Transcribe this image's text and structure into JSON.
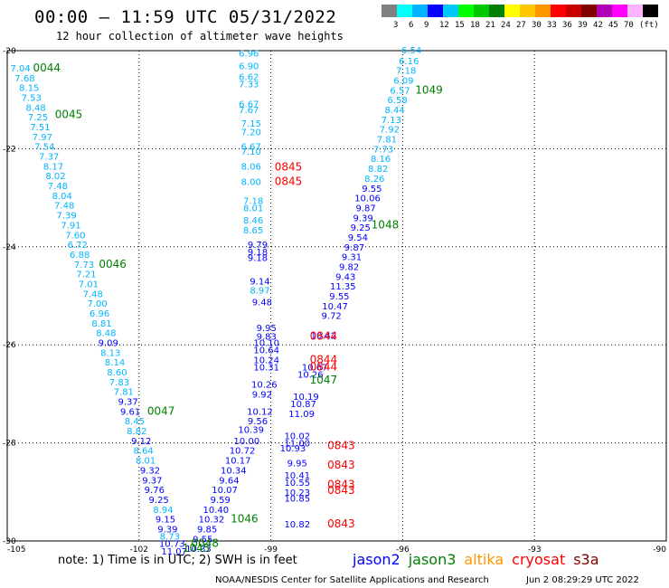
{
  "header": {
    "title": "00:00 — 11:59 UTC 05/31/2022",
    "subtitle": "12 hour collection of altimeter wave heights"
  },
  "colorbar": {
    "unit": "(ft)",
    "colors": [
      "#808080",
      "#00ffff",
      "#00b4ff",
      "#0000ff",
      "#00c8ff",
      "#00ff00",
      "#00c800",
      "#008000",
      "#ffff00",
      "#ffc800",
      "#ff9600",
      "#ff0000",
      "#c80000",
      "#800000",
      "#b400b4",
      "#ff00ff",
      "#ffb4ff",
      "#000000"
    ],
    "labels": [
      "3",
      "6",
      "9",
      "12",
      "15",
      "18",
      "21",
      "24",
      "27",
      "30",
      "33",
      "36",
      "39",
      "42",
      "45",
      "70"
    ]
  },
  "map": {
    "lon_range": [
      -105,
      -90
    ],
    "lat_range": [
      -30,
      -20
    ],
    "lon_ticks": [
      "-105",
      "-102",
      "-99",
      "-96",
      "-93",
      "-90"
    ],
    "lat_ticks": [
      "-20",
      "-22",
      "-24",
      "-26",
      "-28",
      "-30"
    ]
  },
  "observations": [
    {
      "t": "6.54",
      "c": "#00b4ff",
      "lon": -95.8,
      "lat": -19.98
    },
    {
      "t": "6.16",
      "c": "#00b4ff",
      "lon": -95.86,
      "lat": -20.2
    },
    {
      "t": "7.18",
      "c": "#00b4ff",
      "lon": -95.92,
      "lat": -20.4
    },
    {
      "t": "6.09",
      "c": "#00b4ff",
      "lon": -95.98,
      "lat": -20.6
    },
    {
      "t": "6.57",
      "c": "#00b4ff",
      "lon": -96.06,
      "lat": -20.8
    },
    {
      "t": "6.58",
      "c": "#00b4ff",
      "lon": -96.12,
      "lat": -21.0
    },
    {
      "t": "8.44",
      "c": "#00b4ff",
      "lon": -96.18,
      "lat": -21.2
    },
    {
      "t": "7.13",
      "c": "#00b4ff",
      "lon": -96.26,
      "lat": -21.4
    },
    {
      "t": "7.92",
      "c": "#00b4ff",
      "lon": -96.3,
      "lat": -21.6
    },
    {
      "t": "7.81",
      "c": "#00b4ff",
      "lon": -96.36,
      "lat": -21.8
    },
    {
      "t": "7.73",
      "c": "#00b4ff",
      "lon": -96.44,
      "lat": -22.0
    },
    {
      "t": "8.16",
      "c": "#00b4ff",
      "lon": -96.5,
      "lat": -22.2
    },
    {
      "t": "8.82",
      "c": "#00b4ff",
      "lon": -96.56,
      "lat": -22.4
    },
    {
      "t": "8.26",
      "c": "#00b4ff",
      "lon": -96.64,
      "lat": -22.6
    },
    {
      "t": "9.55",
      "c": "#0000ff",
      "lon": -96.7,
      "lat": -22.8
    },
    {
      "t": "10.06",
      "c": "#0000ff",
      "lon": -96.8,
      "lat": -23.0
    },
    {
      "t": "9.87",
      "c": "#0000ff",
      "lon": -96.84,
      "lat": -23.2
    },
    {
      "t": "9.39",
      "c": "#0000ff",
      "lon": -96.9,
      "lat": -23.4
    },
    {
      "t": "9.25",
      "c": "#0000ff",
      "lon": -96.96,
      "lat": -23.6
    },
    {
      "t": "9.54",
      "c": "#0000ff",
      "lon": -97.02,
      "lat": -23.8
    },
    {
      "t": "9.87",
      "c": "#0000ff",
      "lon": -97.1,
      "lat": -24.0
    },
    {
      "t": "9.31",
      "c": "#0000ff",
      "lon": -97.16,
      "lat": -24.2
    },
    {
      "t": "9.82",
      "c": "#0000ff",
      "lon": -97.22,
      "lat": -24.4
    },
    {
      "t": "9.43",
      "c": "#0000ff",
      "lon": -97.3,
      "lat": -24.6
    },
    {
      "t": "11.35",
      "c": "#0000ff",
      "lon": -97.36,
      "lat": -24.8
    },
    {
      "t": "9.55",
      "c": "#0000ff",
      "lon": -97.44,
      "lat": -25.0
    },
    {
      "t": "10.47",
      "c": "#0000ff",
      "lon": -97.54,
      "lat": -25.2
    },
    {
      "t": "9.72",
      "c": "#0000ff",
      "lon": -97.62,
      "lat": -25.4
    },
    {
      "t": "10.42",
      "c": "#0000ff",
      "lon": -97.8,
      "lat": -25.8
    },
    {
      "t": "10.67",
      "c": "#0000ff",
      "lon": -98.0,
      "lat": -26.45
    },
    {
      "t": "10.26",
      "c": "#0000ff",
      "lon": -98.1,
      "lat": -26.6
    },
    {
      "t": "10.19",
      "c": "#0000ff",
      "lon": -98.2,
      "lat": -27.05
    },
    {
      "t": "10.87",
      "c": "#0000ff",
      "lon": -98.26,
      "lat": -27.2
    },
    {
      "t": "11.09",
      "c": "#0000ff",
      "lon": -98.3,
      "lat": -27.4
    },
    {
      "t": "10.02",
      "c": "#0000ff",
      "lon": -98.4,
      "lat": -27.85
    },
    {
      "t": "11.00",
      "c": "#0000ff",
      "lon": -98.4,
      "lat": -28.0
    },
    {
      "t": "10.93",
      "c": "#0000ff",
      "lon": -98.5,
      "lat": -28.1
    },
    {
      "t": "9.95",
      "c": "#0000ff",
      "lon": -98.4,
      "lat": -28.4
    },
    {
      "t": "10.41",
      "c": "#0000ff",
      "lon": -98.4,
      "lat": -28.65
    },
    {
      "t": "10.55",
      "c": "#0000ff",
      "lon": -98.4,
      "lat": -28.8
    },
    {
      "t": "10.23",
      "c": "#0000ff",
      "lon": -98.4,
      "lat": -29.0
    },
    {
      "t": "10.85",
      "c": "#0000ff",
      "lon": -98.4,
      "lat": -29.12
    },
    {
      "t": "10.82",
      "c": "#0000ff",
      "lon": -98.4,
      "lat": -29.65
    },
    {
      "t": "6.96",
      "c": "#00b4ff",
      "lon": -99.5,
      "lat": -20.05
    },
    {
      "t": "6.90",
      "c": "#00b4ff",
      "lon": -99.5,
      "lat": -20.3
    },
    {
      "t": "6.62",
      "c": "#00b4ff",
      "lon": -99.5,
      "lat": -20.53
    },
    {
      "t": "7.33",
      "c": "#00b4ff",
      "lon": -99.5,
      "lat": -20.67
    },
    {
      "t": "6.67",
      "c": "#00b4ff",
      "lon": -99.5,
      "lat": -21.08
    },
    {
      "t": "7.67",
      "c": "#00b4ff",
      "lon": -99.5,
      "lat": -21.2
    },
    {
      "t": "7.15",
      "c": "#00b4ff",
      "lon": -99.45,
      "lat": -21.48
    },
    {
      "t": "7.20",
      "c": "#00b4ff",
      "lon": -99.45,
      "lat": -21.65
    },
    {
      "t": "6.67",
      "c": "#00b4ff",
      "lon": -99.45,
      "lat": -21.95
    },
    {
      "t": "7.10",
      "c": "#00b4ff",
      "lon": -99.45,
      "lat": -22.05
    },
    {
      "t": "8.06",
      "c": "#00b4ff",
      "lon": -99.45,
      "lat": -22.35
    },
    {
      "t": "8.00",
      "c": "#00b4ff",
      "lon": -99.45,
      "lat": -22.67
    },
    {
      "t": "7.18",
      "c": "#00b4ff",
      "lon": -99.4,
      "lat": -23.05
    },
    {
      "t": "8.01",
      "c": "#00b4ff",
      "lon": -99.4,
      "lat": -23.2
    },
    {
      "t": "8.46",
      "c": "#00b4ff",
      "lon": -99.4,
      "lat": -23.45
    },
    {
      "t": "8.65",
      "c": "#00b4ff",
      "lon": -99.4,
      "lat": -23.65
    },
    {
      "t": "9.79",
      "c": "#0000ff",
      "lon": -99.3,
      "lat": -23.95
    },
    {
      "t": "9.18",
      "c": "#0000ff",
      "lon": -99.3,
      "lat": -24.1
    },
    {
      "t": "9.18",
      "c": "#0000ff",
      "lon": -99.3,
      "lat": -24.22
    },
    {
      "t": "9.14",
      "c": "#0000ff",
      "lon": -99.25,
      "lat": -24.7
    },
    {
      "t": "8.97",
      "c": "#00b4ff",
      "lon": -99.25,
      "lat": -24.88
    },
    {
      "t": "9.48",
      "c": "#0000ff",
      "lon": -99.2,
      "lat": -25.12
    },
    {
      "t": "9.95",
      "c": "#0000ff",
      "lon": -99.1,
      "lat": -25.65
    },
    {
      "t": "9.83",
      "c": "#0000ff",
      "lon": -99.1,
      "lat": -25.82
    },
    {
      "t": "10.10",
      "c": "#0000ff",
      "lon": -99.1,
      "lat": -25.95
    },
    {
      "t": "10.64",
      "c": "#0000ff",
      "lon": -99.1,
      "lat": -26.1
    },
    {
      "t": "10.24",
      "c": "#0000ff",
      "lon": -99.1,
      "lat": -26.3
    },
    {
      "t": "10.31",
      "c": "#0000ff",
      "lon": -99.1,
      "lat": -26.45
    },
    {
      "t": "10.26",
      "c": "#0000ff",
      "lon": -99.15,
      "lat": -26.8
    },
    {
      "t": "9.92",
      "c": "#0000ff",
      "lon": -99.2,
      "lat": -27.0
    },
    {
      "t": "10.12",
      "c": "#0000ff",
      "lon": -99.25,
      "lat": -27.35
    },
    {
      "t": "9.56",
      "c": "#0000ff",
      "lon": -99.3,
      "lat": -27.55
    },
    {
      "t": "10.39",
      "c": "#0000ff",
      "lon": -99.45,
      "lat": -27.72
    },
    {
      "t": "10.00",
      "c": "#0000ff",
      "lon": -99.55,
      "lat": -27.95
    },
    {
      "t": "10.72",
      "c": "#0000ff",
      "lon": -99.65,
      "lat": -28.15
    },
    {
      "t": "10.17",
      "c": "#0000ff",
      "lon": -99.75,
      "lat": -28.35
    },
    {
      "t": "10.34",
      "c": "#0000ff",
      "lon": -99.85,
      "lat": -28.55
    },
    {
      "t": "9.64",
      "c": "#0000ff",
      "lon": -99.95,
      "lat": -28.75
    },
    {
      "t": "10.07",
      "c": "#0000ff",
      "lon": -100.05,
      "lat": -28.95
    },
    {
      "t": "9.59",
      "c": "#0000ff",
      "lon": -100.15,
      "lat": -29.15
    },
    {
      "t": "10.40",
      "c": "#0000ff",
      "lon": -100.25,
      "lat": -29.35
    },
    {
      "t": "10.32",
      "c": "#0000ff",
      "lon": -100.35,
      "lat": -29.55
    },
    {
      "t": "9.85",
      "c": "#0000ff",
      "lon": -100.45,
      "lat": -29.75
    },
    {
      "t": "9.55",
      "c": "#0000ff",
      "lon": -100.55,
      "lat": -29.95
    },
    {
      "t": "10.33",
      "c": "#0000ff",
      "lon": -100.65,
      "lat": -30.15
    },
    {
      "t": "7.04",
      "c": "#00b4ff",
      "lon": -104.7,
      "lat": -20.35
    },
    {
      "t": "7.68",
      "c": "#00b4ff",
      "lon": -104.6,
      "lat": -20.55
    },
    {
      "t": "8.15",
      "c": "#00b4ff",
      "lon": -104.5,
      "lat": -20.75
    },
    {
      "t": "7.53",
      "c": "#00b4ff",
      "lon": -104.45,
      "lat": -20.95
    },
    {
      "t": "8.48",
      "c": "#00b4ff",
      "lon": -104.35,
      "lat": -21.15
    },
    {
      "t": "7.25",
      "c": "#00b4ff",
      "lon": -104.3,
      "lat": -21.35
    },
    {
      "t": "7.51",
      "c": "#00b4ff",
      "lon": -104.25,
      "lat": -21.55
    },
    {
      "t": "7.97",
      "c": "#00b4ff",
      "lon": -104.2,
      "lat": -21.75
    },
    {
      "t": "7.54",
      "c": "#00b4ff",
      "lon": -104.15,
      "lat": -21.95
    },
    {
      "t": "7.37",
      "c": "#00b4ff",
      "lon": -104.05,
      "lat": -22.15
    },
    {
      "t": "8.17",
      "c": "#00b4ff",
      "lon": -103.95,
      "lat": -22.35
    },
    {
      "t": "8.02",
      "c": "#00b4ff",
      "lon": -103.9,
      "lat": -22.55
    },
    {
      "t": "7.48",
      "c": "#00b4ff",
      "lon": -103.85,
      "lat": -22.75
    },
    {
      "t": "8.04",
      "c": "#00b4ff",
      "lon": -103.75,
      "lat": -22.95
    },
    {
      "t": "7.48",
      "c": "#00b4ff",
      "lon": -103.7,
      "lat": -23.15
    },
    {
      "t": "7.39",
      "c": "#00b4ff",
      "lon": -103.65,
      "lat": -23.35
    },
    {
      "t": "7.91",
      "c": "#00b4ff",
      "lon": -103.55,
      "lat": -23.55
    },
    {
      "t": "7.60",
      "c": "#00b4ff",
      "lon": -103.45,
      "lat": -23.75
    },
    {
      "t": "6.72",
      "c": "#00b4ff",
      "lon": -103.4,
      "lat": -23.95
    },
    {
      "t": "6.88",
      "c": "#00b4ff",
      "lon": -103.35,
      "lat": -24.15
    },
    {
      "t": "7.73",
      "c": "#00b4ff",
      "lon": -103.25,
      "lat": -24.35
    },
    {
      "t": "7.21",
      "c": "#00b4ff",
      "lon": -103.2,
      "lat": -24.55
    },
    {
      "t": "7.01",
      "c": "#00b4ff",
      "lon": -103.15,
      "lat": -24.75
    },
    {
      "t": "7.48",
      "c": "#00b4ff",
      "lon": -103.05,
      "lat": -24.95
    },
    {
      "t": "7.00",
      "c": "#00b4ff",
      "lon": -102.95,
      "lat": -25.15
    },
    {
      "t": "6.96",
      "c": "#00b4ff",
      "lon": -102.9,
      "lat": -25.35
    },
    {
      "t": "8.81",
      "c": "#00b4ff",
      "lon": -102.85,
      "lat": -25.55
    },
    {
      "t": "8.48",
      "c": "#00b4ff",
      "lon": -102.75,
      "lat": -25.75
    },
    {
      "t": "9.09",
      "c": "#0000ff",
      "lon": -102.7,
      "lat": -25.95
    },
    {
      "t": "8.13",
      "c": "#00b4ff",
      "lon": -102.65,
      "lat": -26.15
    },
    {
      "t": "8.14",
      "c": "#00b4ff",
      "lon": -102.55,
      "lat": -26.35
    },
    {
      "t": "8.60",
      "c": "#00b4ff",
      "lon": -102.5,
      "lat": -26.55
    },
    {
      "t": "7.83",
      "c": "#00b4ff",
      "lon": -102.45,
      "lat": -26.75
    },
    {
      "t": "7.81",
      "c": "#00b4ff",
      "lon": -102.35,
      "lat": -26.95
    },
    {
      "t": "9.37",
      "c": "#0000ff",
      "lon": -102.25,
      "lat": -27.15
    },
    {
      "t": "9.61",
      "c": "#0000ff",
      "lon": -102.2,
      "lat": -27.35
    },
    {
      "t": "8.45",
      "c": "#00b4ff",
      "lon": -102.1,
      "lat": -27.55
    },
    {
      "t": "8.82",
      "c": "#00b4ff",
      "lon": -102.05,
      "lat": -27.75
    },
    {
      "t": "9.12",
      "c": "#0000ff",
      "lon": -101.95,
      "lat": -27.95
    },
    {
      "t": "8.64",
      "c": "#00b4ff",
      "lon": -101.9,
      "lat": -28.15
    },
    {
      "t": "8.01",
      "c": "#00b4ff",
      "lon": -101.85,
      "lat": -28.35
    },
    {
      "t": "9.32",
      "c": "#0000ff",
      "lon": -101.75,
      "lat": -28.55
    },
    {
      "t": "9.37",
      "c": "#0000ff",
      "lon": -101.7,
      "lat": -28.75
    },
    {
      "t": "9.76",
      "c": "#0000ff",
      "lon": -101.65,
      "lat": -28.95
    },
    {
      "t": "9.25",
      "c": "#0000ff",
      "lon": -101.55,
      "lat": -29.15
    },
    {
      "t": "8.94",
      "c": "#00b4ff",
      "lon": -101.45,
      "lat": -29.35
    },
    {
      "t": "9.15",
      "c": "#0000ff",
      "lon": -101.4,
      "lat": -29.55
    },
    {
      "t": "9.39",
      "c": "#0000ff",
      "lon": -101.35,
      "lat": -29.75
    },
    {
      "t": "8.73",
      "c": "#00b4ff",
      "lon": -101.3,
      "lat": -29.9
    },
    {
      "t": "10.73",
      "c": "#0000ff",
      "lon": -101.25,
      "lat": -30.05
    },
    {
      "t": "11.07",
      "c": "#0000ff",
      "lon": -101.2,
      "lat": -30.2
    }
  ],
  "times": [
    {
      "t": "0044",
      "c": "#008000",
      "lon": -104.1,
      "lat": -20.35
    },
    {
      "t": "0045",
      "c": "#008000",
      "lon": -103.6,
      "lat": -21.3
    },
    {
      "t": "1049",
      "c": "#008000",
      "lon": -95.4,
      "lat": -20.8
    },
    {
      "t": "0845",
      "c": "#ff0000",
      "lon": -98.6,
      "lat": -22.37
    },
    {
      "t": "0845",
      "c": "#ff0000",
      "lon": -98.6,
      "lat": -22.67
    },
    {
      "t": "1048",
      "c": "#008000",
      "lon": -96.4,
      "lat": -23.55
    },
    {
      "t": "0046",
      "c": "#008000",
      "lon": -102.6,
      "lat": -24.35
    },
    {
      "t": "0844",
      "c": "#ff0000",
      "lon": -97.8,
      "lat": -25.82
    },
    {
      "t": "0844",
      "c": "#ff0000",
      "lon": -97.8,
      "lat": -26.3
    },
    {
      "t": "0844",
      "c": "#ff0000",
      "lon": -97.8,
      "lat": -26.45
    },
    {
      "t": "1047",
      "c": "#008000",
      "lon": -97.8,
      "lat": -26.72
    },
    {
      "t": "0047",
      "c": "#008000",
      "lon": -101.5,
      "lat": -27.35
    },
    {
      "t": "0843",
      "c": "#ff0000",
      "lon": -97.4,
      "lat": -28.05
    },
    {
      "t": "0843",
      "c": "#ff0000",
      "lon": -97.4,
      "lat": -28.45
    },
    {
      "t": "0843",
      "c": "#ff0000",
      "lon": -97.4,
      "lat": -28.85
    },
    {
      "t": "0843",
      "c": "#ff0000",
      "lon": -97.4,
      "lat": -28.97
    },
    {
      "t": "0843",
      "c": "#ff0000",
      "lon": -97.4,
      "lat": -29.65
    },
    {
      "t": "1046",
      "c": "#008000",
      "lon": -99.6,
      "lat": -29.55
    },
    {
      "t": "0048",
      "c": "#008000",
      "lon": -100.5,
      "lat": -30.05
    },
    {
      "t": "1045",
      "c": "#008000",
      "lon": -100.7,
      "lat": -30.15
    }
  ],
  "footer": {
    "note": "note: 1) Time is in UTC; 2) SWH is in feet",
    "legend": [
      {
        "label": "jason2",
        "color": "#0000ff"
      },
      {
        "label": "jason3",
        "color": "#008000"
      },
      {
        "label": "altika",
        "color": "#ff9600"
      },
      {
        "label": "cryosat",
        "color": "#ff0000"
      },
      {
        "label": "s3a",
        "color": "#800000"
      }
    ],
    "credit": "NOAA/NESDIS Center for Satellite Applications and Research",
    "stamp": "Jun  2 08:29:29 UTC 2022"
  }
}
